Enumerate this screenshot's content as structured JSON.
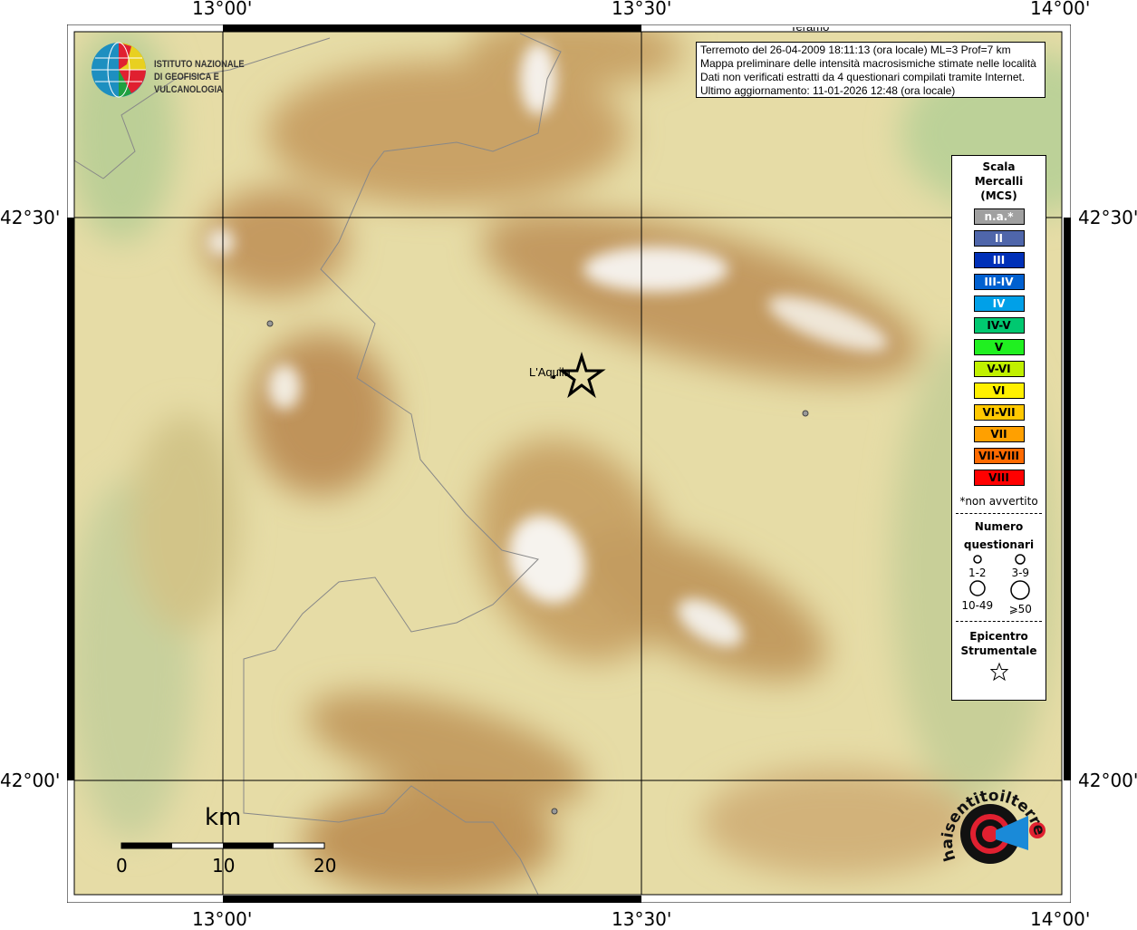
{
  "axes": {
    "lon_ticks": [
      "13°00'",
      "13°30'",
      "14°00'"
    ],
    "lat_ticks": [
      "42°30'",
      "42°00'"
    ]
  },
  "info": {
    "line1": "Terremoto del 26-04-2009 18:11:13 (ora locale) ML=3 Prof=7 km",
    "line2": "Mappa preliminare delle intensità macrosismiche stimate nelle località",
    "line3": "Dati non verificati estratti da 4 questionari compilati tramite Internet.",
    "line4": "Ultimo aggiornamento: 11-01-2026 12:48 (ora locale)"
  },
  "places": {
    "laquila": "L'Aquila",
    "teramo": "Teramo"
  },
  "logo_ingv": {
    "line1": "ISTITUTO NAZIONALE",
    "line2": "DI GEOFISICA E VULCANOLOGIA"
  },
  "logo_hsit": "www.haisentitoilterremoto.it",
  "scalebar": {
    "unit": "km",
    "labels": [
      "0",
      "10",
      "20"
    ]
  },
  "legend": {
    "title": [
      "Scala",
      "Mercalli",
      "(MCS)"
    ],
    "classes": [
      {
        "label": "n.a.*",
        "color": "#a0a0a0",
        "text": "#ffffff"
      },
      {
        "label": "II",
        "color": "#4f66aa",
        "text": "#ffffff"
      },
      {
        "label": "III",
        "color": "#0030b8",
        "text": "#ffffff"
      },
      {
        "label": "III-IV",
        "color": "#0060d0",
        "text": "#ffffff"
      },
      {
        "label": "IV",
        "color": "#00a0e8",
        "text": "#ffffff"
      },
      {
        "label": "IV-V",
        "color": "#00c870",
        "text": "#000000"
      },
      {
        "label": "V",
        "color": "#20f020",
        "text": "#000000"
      },
      {
        "label": "V-VI",
        "color": "#c0f000",
        "text": "#000000"
      },
      {
        "label": "VI",
        "color": "#fff000",
        "text": "#000000"
      },
      {
        "label": "VI-VII",
        "color": "#ffc800",
        "text": "#000000"
      },
      {
        "label": "VII",
        "color": "#ffa000",
        "text": "#000000"
      },
      {
        "label": "VII-VIII",
        "color": "#ff6a00",
        "text": "#000000"
      },
      {
        "label": "VIII",
        "color": "#ff0000",
        "text": "#000000"
      }
    ],
    "note": "*non avvertito",
    "count_title": [
      "Numero",
      "questionari"
    ],
    "counts": [
      "1-2",
      "3-9",
      "10-49",
      "⩾50"
    ],
    "epi_title": [
      "Epicentro",
      "Strumentale"
    ]
  }
}
